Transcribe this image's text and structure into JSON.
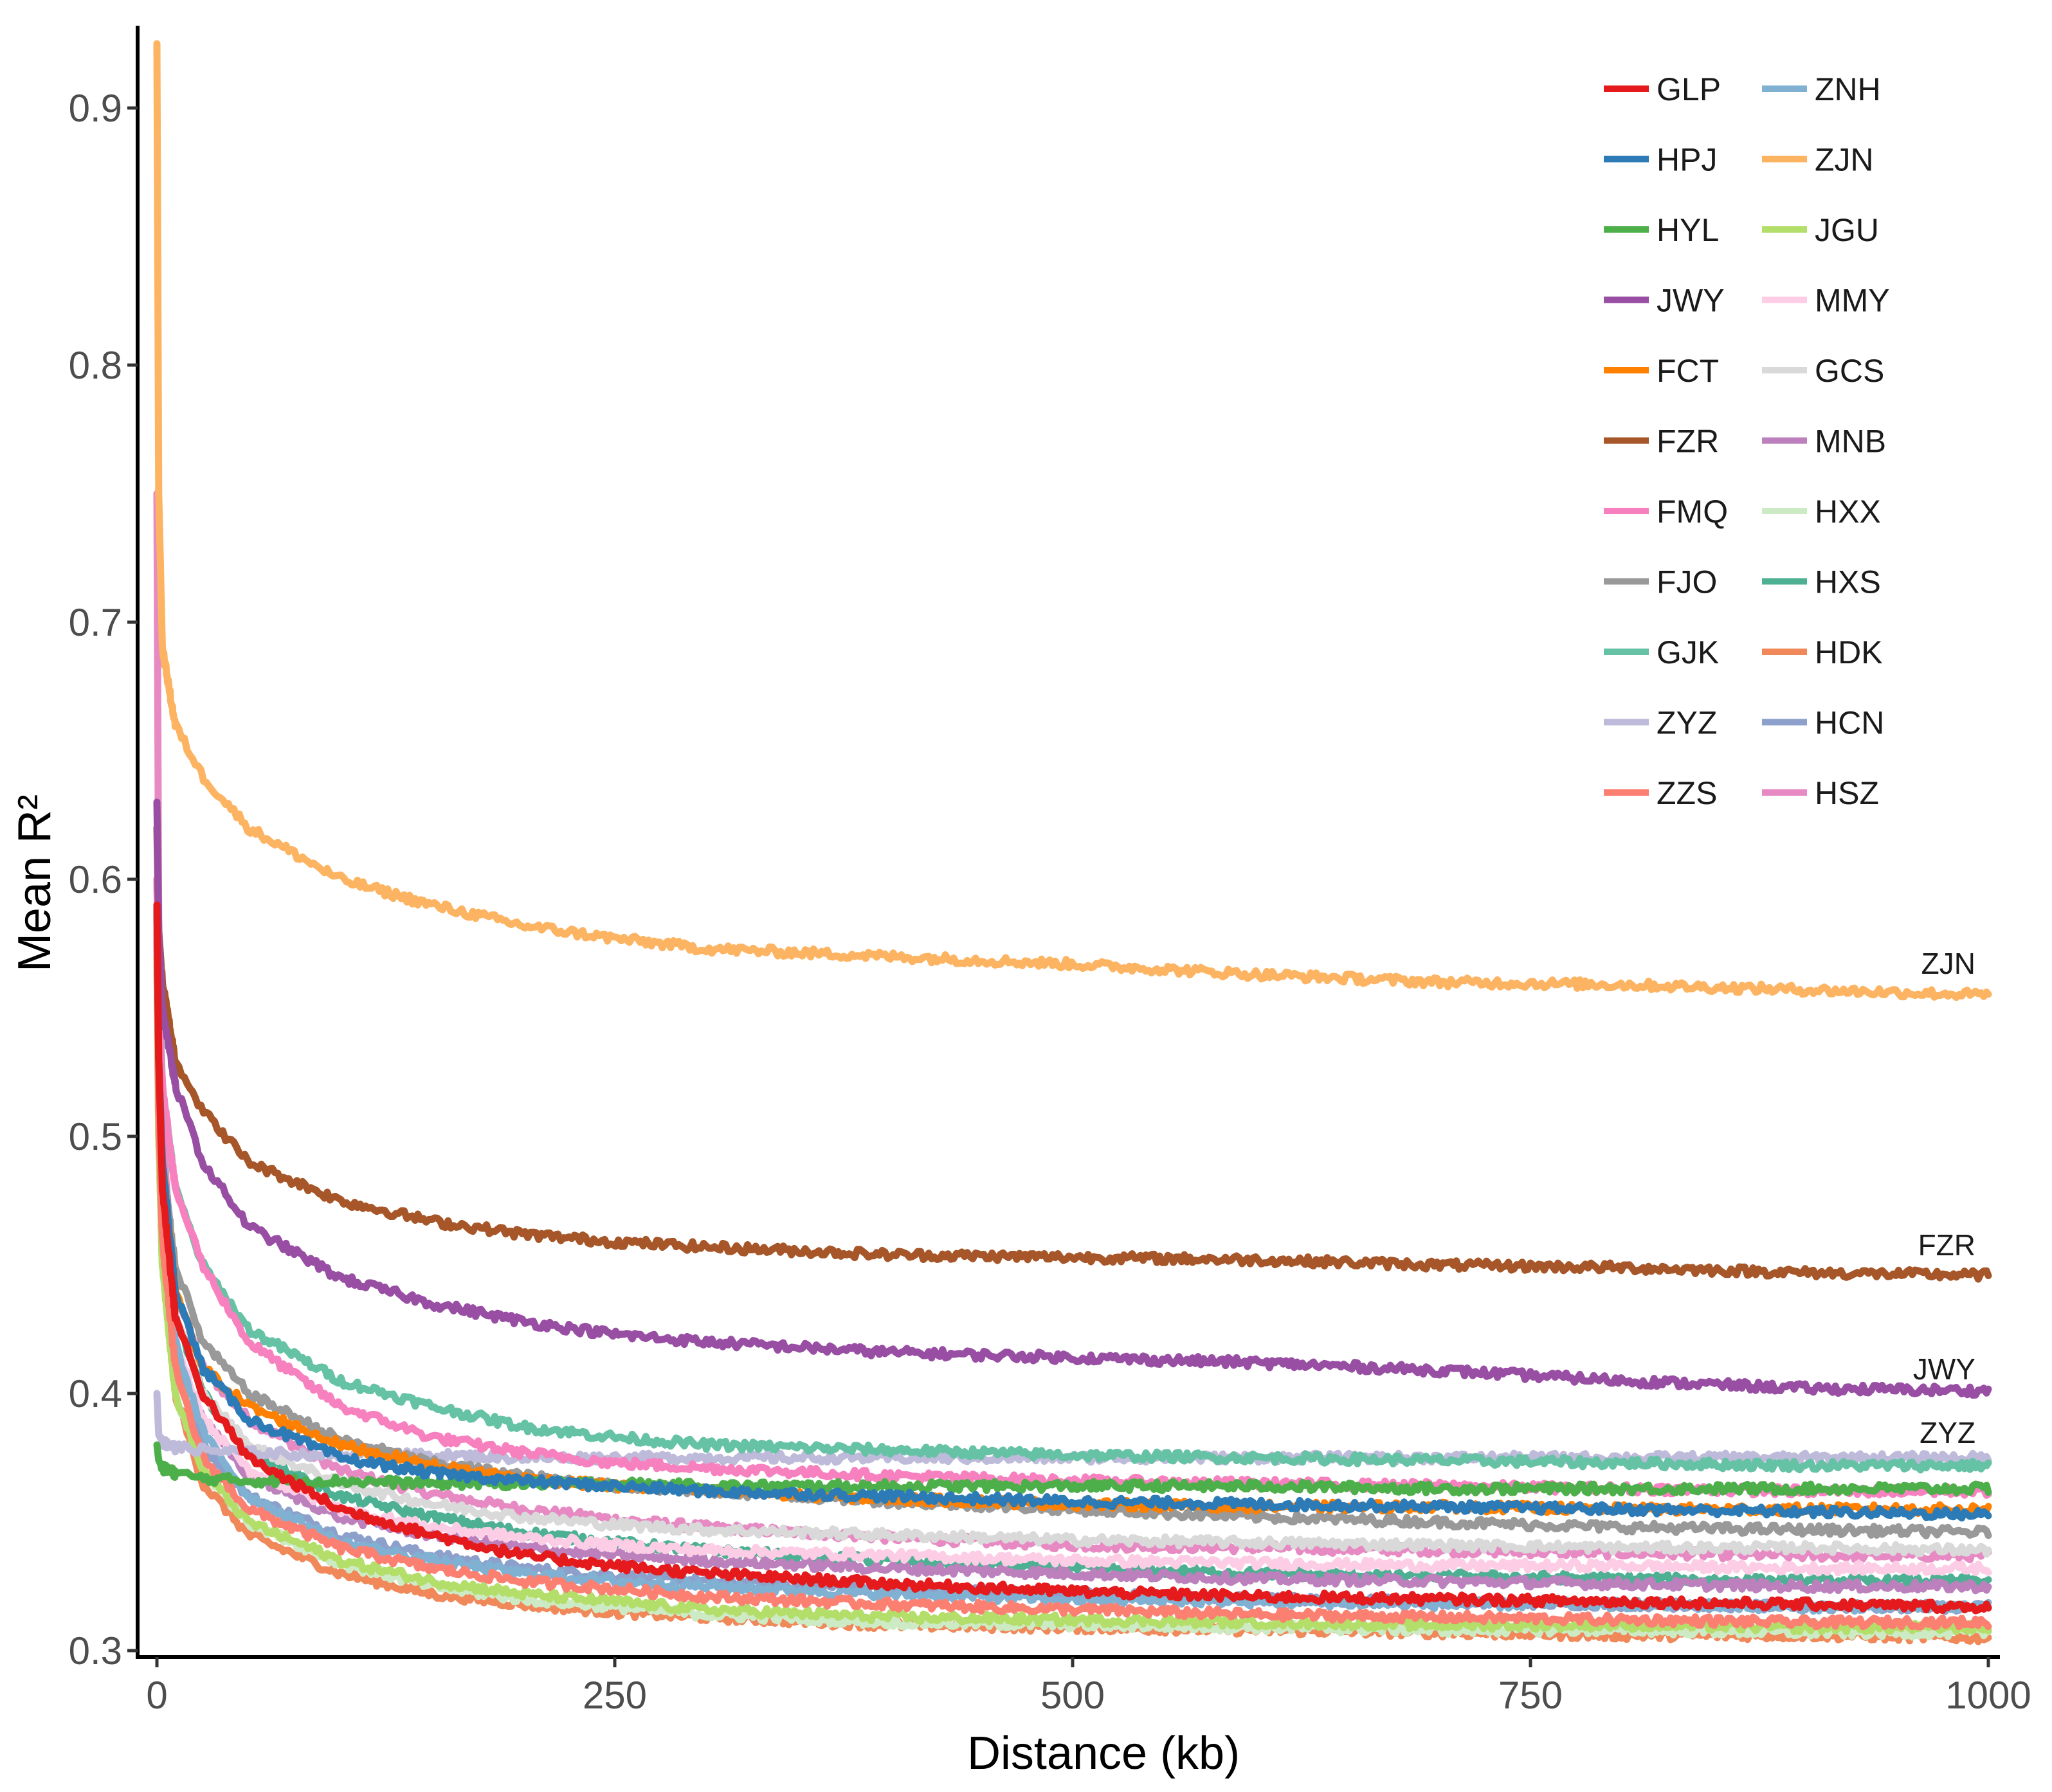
{
  "chart_data": {
    "type": "line",
    "title": "",
    "xlabel": "Distance (kb)",
    "ylabel": "Mean R²",
    "xlim": [
      0,
      1000
    ],
    "ylim": [
      0.3,
      0.93
    ],
    "x_ticks": [
      0,
      250,
      500,
      750,
      1000
    ],
    "y_ticks": [
      0.3,
      0.4,
      0.5,
      0.6,
      0.7,
      0.8,
      0.9
    ],
    "x_tick_labels": [
      "0",
      "250",
      "500",
      "750",
      "1000"
    ],
    "y_tick_labels": [
      "0.3",
      "0.4",
      "0.5",
      "0.6",
      "0.7",
      "0.8",
      "0.9"
    ],
    "grid": false,
    "legend_position": "top-right",
    "x": [
      0,
      1,
      3,
      10,
      25,
      50,
      100,
      150,
      200,
      250,
      300,
      400,
      500,
      600,
      700,
      800,
      900,
      1000
    ],
    "series": [
      {
        "name": "GLP",
        "color": "#E41A1C",
        "values": [
          0.59,
          0.53,
          0.48,
          0.43,
          0.4,
          0.375,
          0.355,
          0.345,
          0.337,
          0.333,
          0.33,
          0.326,
          0.323,
          0.321,
          0.32,
          0.319,
          0.318,
          0.317
        ]
      },
      {
        "name": "HPJ",
        "color": "#2C7BB6",
        "values": [
          0.59,
          0.53,
          0.49,
          0.44,
          0.41,
          0.39,
          0.375,
          0.369,
          0.366,
          0.364,
          0.362,
          0.36,
          0.358,
          0.357,
          0.356,
          0.355,
          0.354,
          0.353
        ]
      },
      {
        "name": "HYL",
        "color": "#4DAF4A",
        "values": [
          0.38,
          0.374,
          0.371,
          0.369,
          0.367,
          0.366,
          0.366,
          0.365,
          0.365,
          0.365,
          0.364,
          0.364,
          0.364,
          0.364,
          0.363,
          0.363,
          0.363,
          0.363
        ]
      },
      {
        "name": "JWY",
        "color": "#984EA3",
        "values": [
          0.63,
          0.58,
          0.55,
          0.52,
          0.49,
          0.465,
          0.445,
          0.435,
          0.428,
          0.423,
          0.42,
          0.416,
          0.414,
          0.412,
          0.409,
          0.405,
          0.402,
          0.401
        ]
      },
      {
        "name": "FCT",
        "color": "#FF7F00",
        "values": [
          0.59,
          0.53,
          0.49,
          0.44,
          0.41,
          0.395,
          0.38,
          0.372,
          0.367,
          0.364,
          0.362,
          0.359,
          0.357,
          0.356,
          0.356,
          0.355,
          0.355,
          0.355
        ]
      },
      {
        "name": "FZR",
        "color": "#A65628",
        "values": [
          0.62,
          0.58,
          0.56,
          0.53,
          0.51,
          0.49,
          0.475,
          0.467,
          0.462,
          0.459,
          0.457,
          0.454,
          0.453,
          0.452,
          0.45,
          0.449,
          0.447,
          0.446
        ]
      },
      {
        "name": "FMQ",
        "color": "#F781BF",
        "values": [
          0.6,
          0.55,
          0.52,
          0.48,
          0.45,
          0.42,
          0.395,
          0.383,
          0.377,
          0.373,
          0.371,
          0.368,
          0.366,
          0.365,
          0.364,
          0.363,
          0.362,
          0.362
        ]
      },
      {
        "name": "FJO",
        "color": "#999999",
        "values": [
          0.59,
          0.53,
          0.49,
          0.45,
          0.42,
          0.4,
          0.382,
          0.373,
          0.368,
          0.364,
          0.362,
          0.358,
          0.355,
          0.352,
          0.35,
          0.348,
          0.347,
          0.346
        ]
      },
      {
        "name": "GJK",
        "color": "#66C2A5",
        "values": [
          0.6,
          0.56,
          0.52,
          0.48,
          0.45,
          0.425,
          0.405,
          0.395,
          0.387,
          0.383,
          0.38,
          0.378,
          0.376,
          0.375,
          0.374,
          0.373,
          0.372,
          0.372
        ]
      },
      {
        "name": "ZYZ",
        "color": "#BEBADA",
        "values": [
          0.4,
          0.384,
          0.381,
          0.379,
          0.378,
          0.377,
          0.376,
          0.376,
          0.375,
          0.375,
          0.375,
          0.375,
          0.375,
          0.375,
          0.375,
          0.375,
          0.375,
          0.375
        ]
      },
      {
        "name": "ZZS",
        "color": "#FB8072",
        "values": [
          0.58,
          0.51,
          0.46,
          0.41,
          0.375,
          0.355,
          0.34,
          0.332,
          0.327,
          0.324,
          0.321,
          0.318,
          0.316,
          0.314,
          0.313,
          0.312,
          0.311,
          0.311
        ]
      },
      {
        "name": "ZNH",
        "color": "#80B1D3",
        "values": [
          0.58,
          0.52,
          0.47,
          0.42,
          0.385,
          0.36,
          0.342,
          0.335,
          0.33,
          0.327,
          0.325,
          0.322,
          0.32,
          0.319,
          0.318,
          0.318,
          0.317,
          0.317
        ]
      },
      {
        "name": "ZJN",
        "color": "#FDB462",
        "values": [
          0.925,
          0.75,
          0.69,
          0.66,
          0.64,
          0.62,
          0.6,
          0.59,
          0.582,
          0.577,
          0.573,
          0.57,
          0.567,
          0.563,
          0.56,
          0.559,
          0.557,
          0.555
        ]
      },
      {
        "name": "JGU",
        "color": "#B3DE69",
        "values": [
          0.57,
          0.5,
          0.45,
          0.4,
          0.37,
          0.35,
          0.335,
          0.327,
          0.322,
          0.319,
          0.316,
          0.313,
          0.312,
          0.311,
          0.31,
          0.31,
          0.309,
          0.309
        ]
      },
      {
        "name": "MMY",
        "color": "#FCCDE5",
        "values": [
          0.58,
          0.52,
          0.47,
          0.42,
          0.39,
          0.37,
          0.355,
          0.348,
          0.344,
          0.341,
          0.339,
          0.337,
          0.335,
          0.334,
          0.333,
          0.333,
          0.332,
          0.332
        ]
      },
      {
        "name": "GCS",
        "color": "#D9D9D9",
        "values": [
          0.59,
          0.53,
          0.48,
          0.43,
          0.4,
          0.38,
          0.365,
          0.357,
          0.352,
          0.349,
          0.347,
          0.345,
          0.343,
          0.342,
          0.341,
          0.34,
          0.34,
          0.339
        ]
      },
      {
        "name": "MNB",
        "color": "#BC80BD",
        "values": [
          0.58,
          0.52,
          0.47,
          0.42,
          0.39,
          0.368,
          0.352,
          0.345,
          0.34,
          0.337,
          0.335,
          0.332,
          0.33,
          0.328,
          0.327,
          0.326,
          0.325,
          0.325
        ]
      },
      {
        "name": "HXX",
        "color": "#CCEBC5",
        "values": [
          0.57,
          0.5,
          0.45,
          0.4,
          0.37,
          0.35,
          0.334,
          0.325,
          0.32,
          0.317,
          0.314,
          0.311,
          0.31,
          0.309,
          0.308,
          0.308,
          0.307,
          0.307
        ]
      },
      {
        "name": "HXS",
        "color": "#4DB093",
        "values": [
          0.59,
          0.53,
          0.48,
          0.43,
          0.4,
          0.378,
          0.36,
          0.352,
          0.346,
          0.342,
          0.339,
          0.335,
          0.332,
          0.33,
          0.329,
          0.328,
          0.327,
          0.327
        ]
      },
      {
        "name": "HDK",
        "color": "#F0885A",
        "values": [
          0.57,
          0.5,
          0.45,
          0.4,
          0.365,
          0.345,
          0.33,
          0.322,
          0.318,
          0.315,
          0.313,
          0.31,
          0.309,
          0.308,
          0.307,
          0.306,
          0.306,
          0.305
        ]
      },
      {
        "name": "HCN",
        "color": "#8DA0CB",
        "values": [
          0.58,
          0.51,
          0.46,
          0.41,
          0.38,
          0.36,
          0.345,
          0.337,
          0.332,
          0.329,
          0.327,
          0.324,
          0.322,
          0.32,
          0.319,
          0.318,
          0.317,
          0.317
        ]
      },
      {
        "name": "HSZ",
        "color": "#E78AC3",
        "values": [
          0.75,
          0.58,
          0.5,
          0.44,
          0.41,
          0.39,
          0.37,
          0.361,
          0.355,
          0.351,
          0.348,
          0.344,
          0.341,
          0.34,
          0.339,
          0.338,
          0.337,
          0.337
        ]
      }
    ],
    "annotations": [
      {
        "text": "ZJN",
        "x": 1000,
        "y": 0.555
      },
      {
        "text": "FZR",
        "x": 1000,
        "y": 0.446
      },
      {
        "text": "JWY",
        "x": 1000,
        "y": 0.401
      },
      {
        "text": "ZYZ",
        "x": 1000,
        "y": 0.375
      }
    ]
  }
}
